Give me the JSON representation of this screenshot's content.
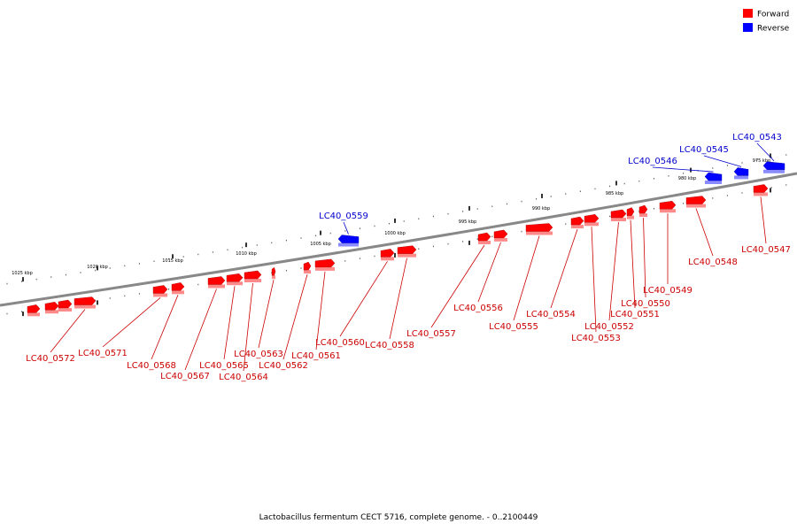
{
  "colors": {
    "forward": "#ff0000",
    "forward_light": "#ff8a8a",
    "forward_dark": "#a00000",
    "reverse": "#0000ff",
    "reverse_light": "#8a8aff",
    "reverse_dark": "#0000a0",
    "forward_label": "#cc0000",
    "reverse_label": "#0000cc",
    "backbone": "#888888"
  },
  "legend": {
    "forward": "Forward",
    "reverse": "Reverse"
  },
  "caption": "Lactobacillus fermentum CECT 5716, complete genome. - 0..2100449",
  "ticks": [
    "975 kbp",
    "980 kbp",
    "985 kbp",
    "990 kbp",
    "995 kbp",
    "1000 kbp",
    "1005 kbp",
    "1010 kbp",
    "1015 kbp",
    "1020 kbp",
    "1025 kbp"
  ],
  "genes": [
    {
      "name": "LC40_0543",
      "strand": "reverse"
    },
    {
      "name": "LC40_0545",
      "strand": "reverse"
    },
    {
      "name": "LC40_0546",
      "strand": "reverse"
    },
    {
      "name": "LC40_0547",
      "strand": "forward"
    },
    {
      "name": "LC40_0548",
      "strand": "forward"
    },
    {
      "name": "LC40_0549",
      "strand": "forward"
    },
    {
      "name": "LC40_0550",
      "strand": "forward"
    },
    {
      "name": "LC40_0551",
      "strand": "forward"
    },
    {
      "name": "LC40_0552",
      "strand": "forward"
    },
    {
      "name": "LC40_0553",
      "strand": "forward"
    },
    {
      "name": "LC40_0554",
      "strand": "forward"
    },
    {
      "name": "LC40_0555",
      "strand": "forward"
    },
    {
      "name": "LC40_0556",
      "strand": "forward"
    },
    {
      "name": "LC40_0557",
      "strand": "forward"
    },
    {
      "name": "LC40_0558",
      "strand": "forward"
    },
    {
      "name": "LC40_0559",
      "strand": "reverse"
    },
    {
      "name": "LC40_0560",
      "strand": "forward"
    },
    {
      "name": "LC40_0561",
      "strand": "forward"
    },
    {
      "name": "LC40_0562",
      "strand": "forward"
    },
    {
      "name": "LC40_0563",
      "strand": "forward"
    },
    {
      "name": "LC40_0564",
      "strand": "forward"
    },
    {
      "name": "LC40_0565",
      "strand": "forward"
    },
    {
      "name": "LC40_0567",
      "strand": "forward"
    },
    {
      "name": "LC40_0568",
      "strand": "forward"
    },
    {
      "name": "LC40_0571",
      "strand": "forward"
    },
    {
      "name": "LC40_0572",
      "strand": "forward"
    }
  ]
}
